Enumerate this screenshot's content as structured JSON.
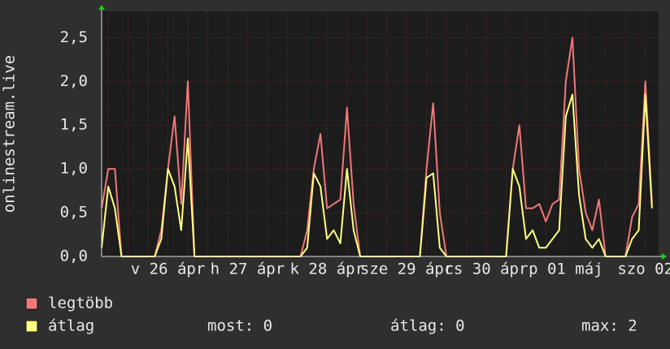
{
  "chart_data": {
    "type": "line",
    "y_label": "onlinestream.live",
    "categories": [
      null,
      null,
      null,
      null,
      null,
      null,
      null,
      null,
      null,
      null,
      "v 26 ápr",
      null,
      null,
      null,
      null,
      null,
      null,
      null,
      null,
      null,
      null,
      null,
      "h 27 ápr",
      null,
      null,
      null,
      null,
      null,
      null,
      null,
      null,
      null,
      null,
      null,
      "k 28 ápr",
      null,
      null,
      null,
      null,
      null,
      null,
      null,
      null,
      null,
      null,
      null,
      "sze 29 ápr",
      null,
      null,
      null,
      null,
      null,
      null,
      null,
      null,
      null,
      null,
      null,
      "cs 30 ápr",
      null,
      null,
      null,
      null,
      null,
      null,
      null,
      null,
      null,
      null,
      null,
      "p 01 máj",
      null,
      null,
      null,
      null,
      null,
      null,
      null,
      null,
      null,
      null,
      null,
      "szo 02",
      null
    ],
    "series": [
      {
        "name": "legtöbb",
        "color": "#f07878",
        "values": [
          0.55,
          1.0,
          1.0,
          0,
          0,
          0,
          0,
          0,
          0,
          0.3,
          1.0,
          1.6,
          0.6,
          2.0,
          0,
          0,
          0,
          0,
          0,
          0,
          0,
          0,
          0,
          0,
          0,
          0,
          0,
          0,
          0,
          0,
          0,
          0.3,
          1.0,
          1.4,
          0.55,
          0.6,
          0.65,
          1.7,
          0.6,
          0,
          0,
          0,
          0,
          0,
          0,
          0,
          0,
          0,
          0,
          1.0,
          1.75,
          0.5,
          0,
          0,
          0,
          0,
          0,
          0,
          0,
          0,
          0,
          0,
          1.0,
          1.5,
          0.55,
          0.55,
          0.6,
          0.4,
          0.6,
          0.65,
          2.0,
          2.5,
          1.0,
          0.5,
          0.3,
          0.65,
          0,
          0,
          0,
          0,
          0.45,
          0.6,
          2.0,
          0.6
        ]
      },
      {
        "name": "átlag",
        "color": "#ffff80",
        "values": [
          0.1,
          0.8,
          0.55,
          0,
          0,
          0,
          0,
          0,
          0,
          0.2,
          1.0,
          0.8,
          0.3,
          1.35,
          0,
          0,
          0,
          0,
          0,
          0,
          0,
          0,
          0,
          0,
          0,
          0,
          0,
          0,
          0,
          0,
          0,
          0.1,
          0.95,
          0.8,
          0.2,
          0.3,
          0.15,
          1.0,
          0.3,
          0,
          0,
          0,
          0,
          0,
          0,
          0,
          0,
          0,
          0,
          0.9,
          0.95,
          0.1,
          0,
          0,
          0,
          0,
          0,
          0,
          0,
          0,
          0,
          0,
          1.0,
          0.8,
          0.2,
          0.3,
          0.1,
          0.1,
          0.2,
          0.3,
          1.6,
          1.85,
          0.7,
          0.2,
          0.1,
          0.2,
          0,
          0,
          0,
          0,
          0.2,
          0.3,
          1.85,
          0.55
        ]
      }
    ],
    "ylim": [
      0,
      2.8
    ],
    "yticks": [
      {
        "value": 0,
        "label": "0,0"
      },
      {
        "value": 0.5,
        "label": "0,5"
      },
      {
        "value": 1,
        "label": "1,0"
      },
      {
        "value": 1.5,
        "label": "1,5"
      },
      {
        "value": 2,
        "label": "2,0"
      },
      {
        "value": 2.5,
        "label": "2,5"
      }
    ],
    "grid": true,
    "stats": [
      "most: 0",
      "átlag: 0",
      "max: 2"
    ]
  }
}
